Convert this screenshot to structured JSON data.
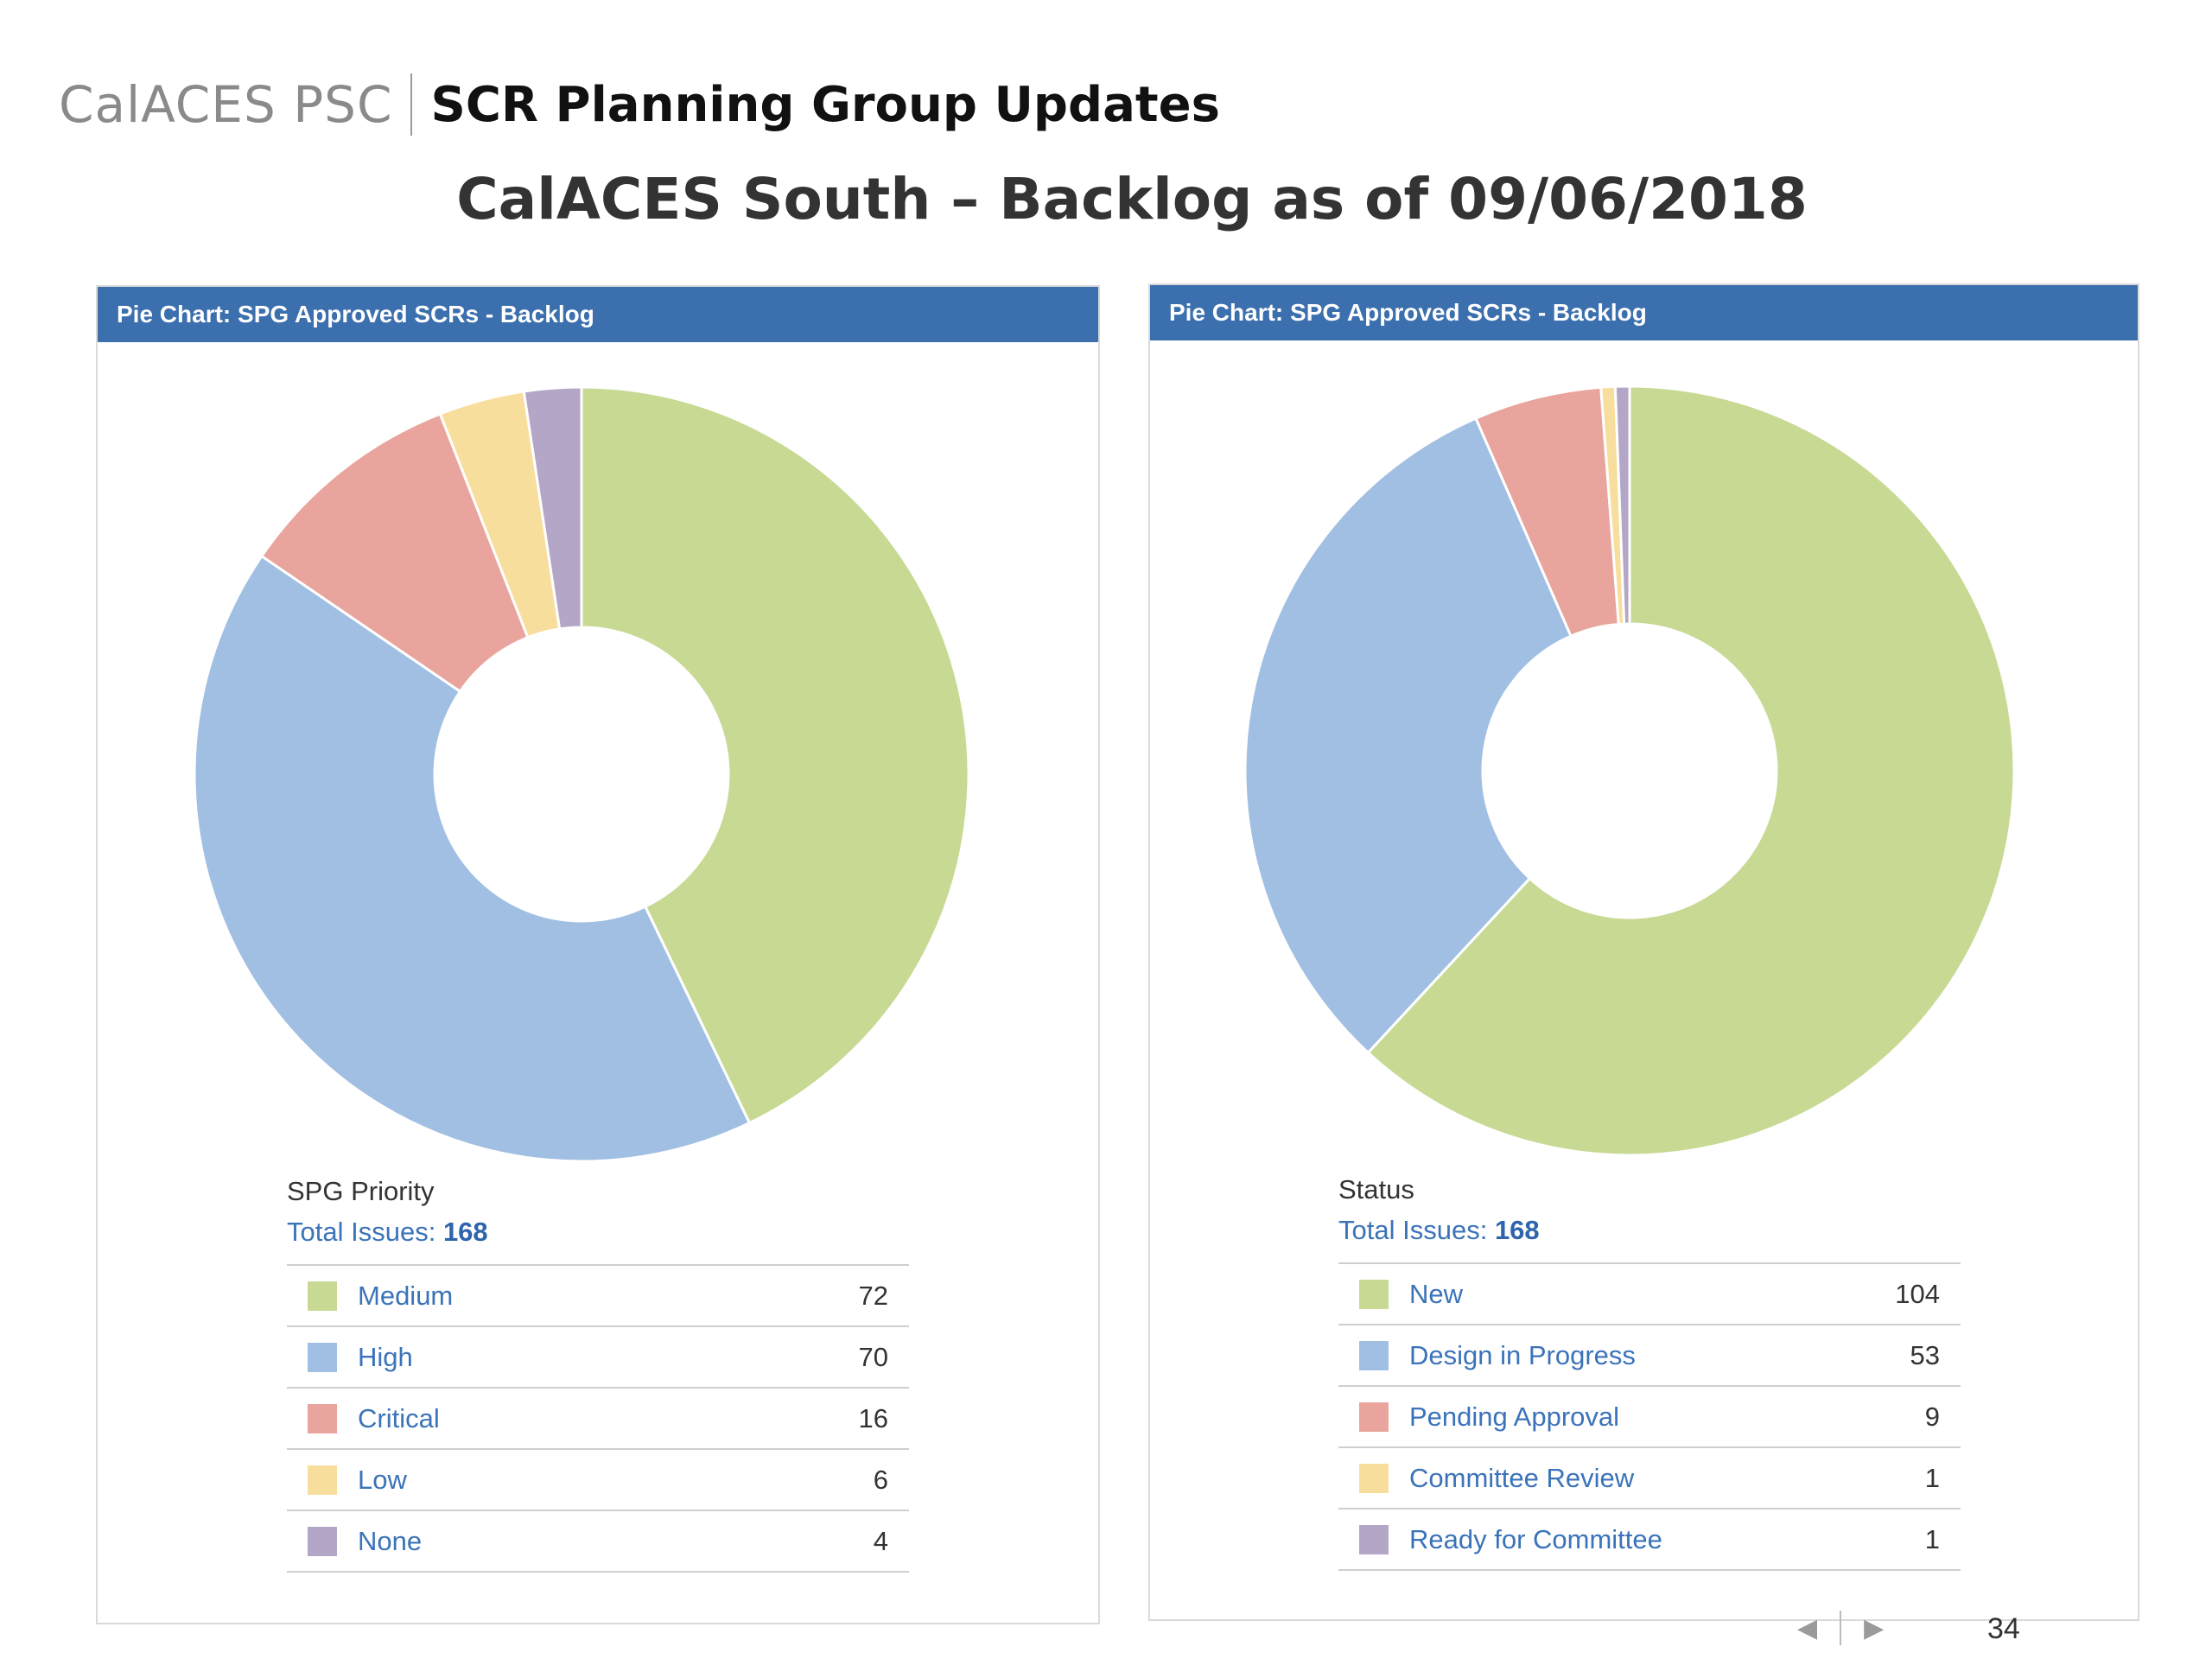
{
  "header": {
    "org": "CalACES PSC",
    "title": "SCR Planning Group Updates"
  },
  "slide_title": "CalACES South – Backlog as of 09/06/2018",
  "footer": {
    "page_number": "34",
    "prev_glyph": "◀",
    "next_glyph": "▶"
  },
  "chart_data": [
    {
      "type": "pie",
      "title": "Pie Chart: SPG Approved SCRs - Backlog",
      "field": "SPG Priority",
      "total_label": "Total Issues:",
      "total": "168",
      "donut": true,
      "categories": [
        "Medium",
        "High",
        "Critical",
        "Low",
        "None"
      ],
      "values": [
        72,
        70,
        16,
        6,
        4
      ],
      "colors": [
        "#c8d994",
        "#a0bfe2",
        "#e8a49d",
        "#f8de9c",
        "#b3a6c6"
      ]
    },
    {
      "type": "pie",
      "title": "Pie Chart: SPG Approved SCRs - Backlog",
      "field": "Status",
      "total_label": "Total Issues:",
      "total": "168",
      "donut": true,
      "categories": [
        "New",
        "Design in Progress",
        "Pending Approval",
        "Committee Review",
        "Ready for Committee"
      ],
      "values": [
        104,
        53,
        9,
        1,
        1
      ],
      "colors": [
        "#c8d994",
        "#a0bfe2",
        "#e8a49d",
        "#f8de9c",
        "#b3a6c6"
      ]
    }
  ]
}
